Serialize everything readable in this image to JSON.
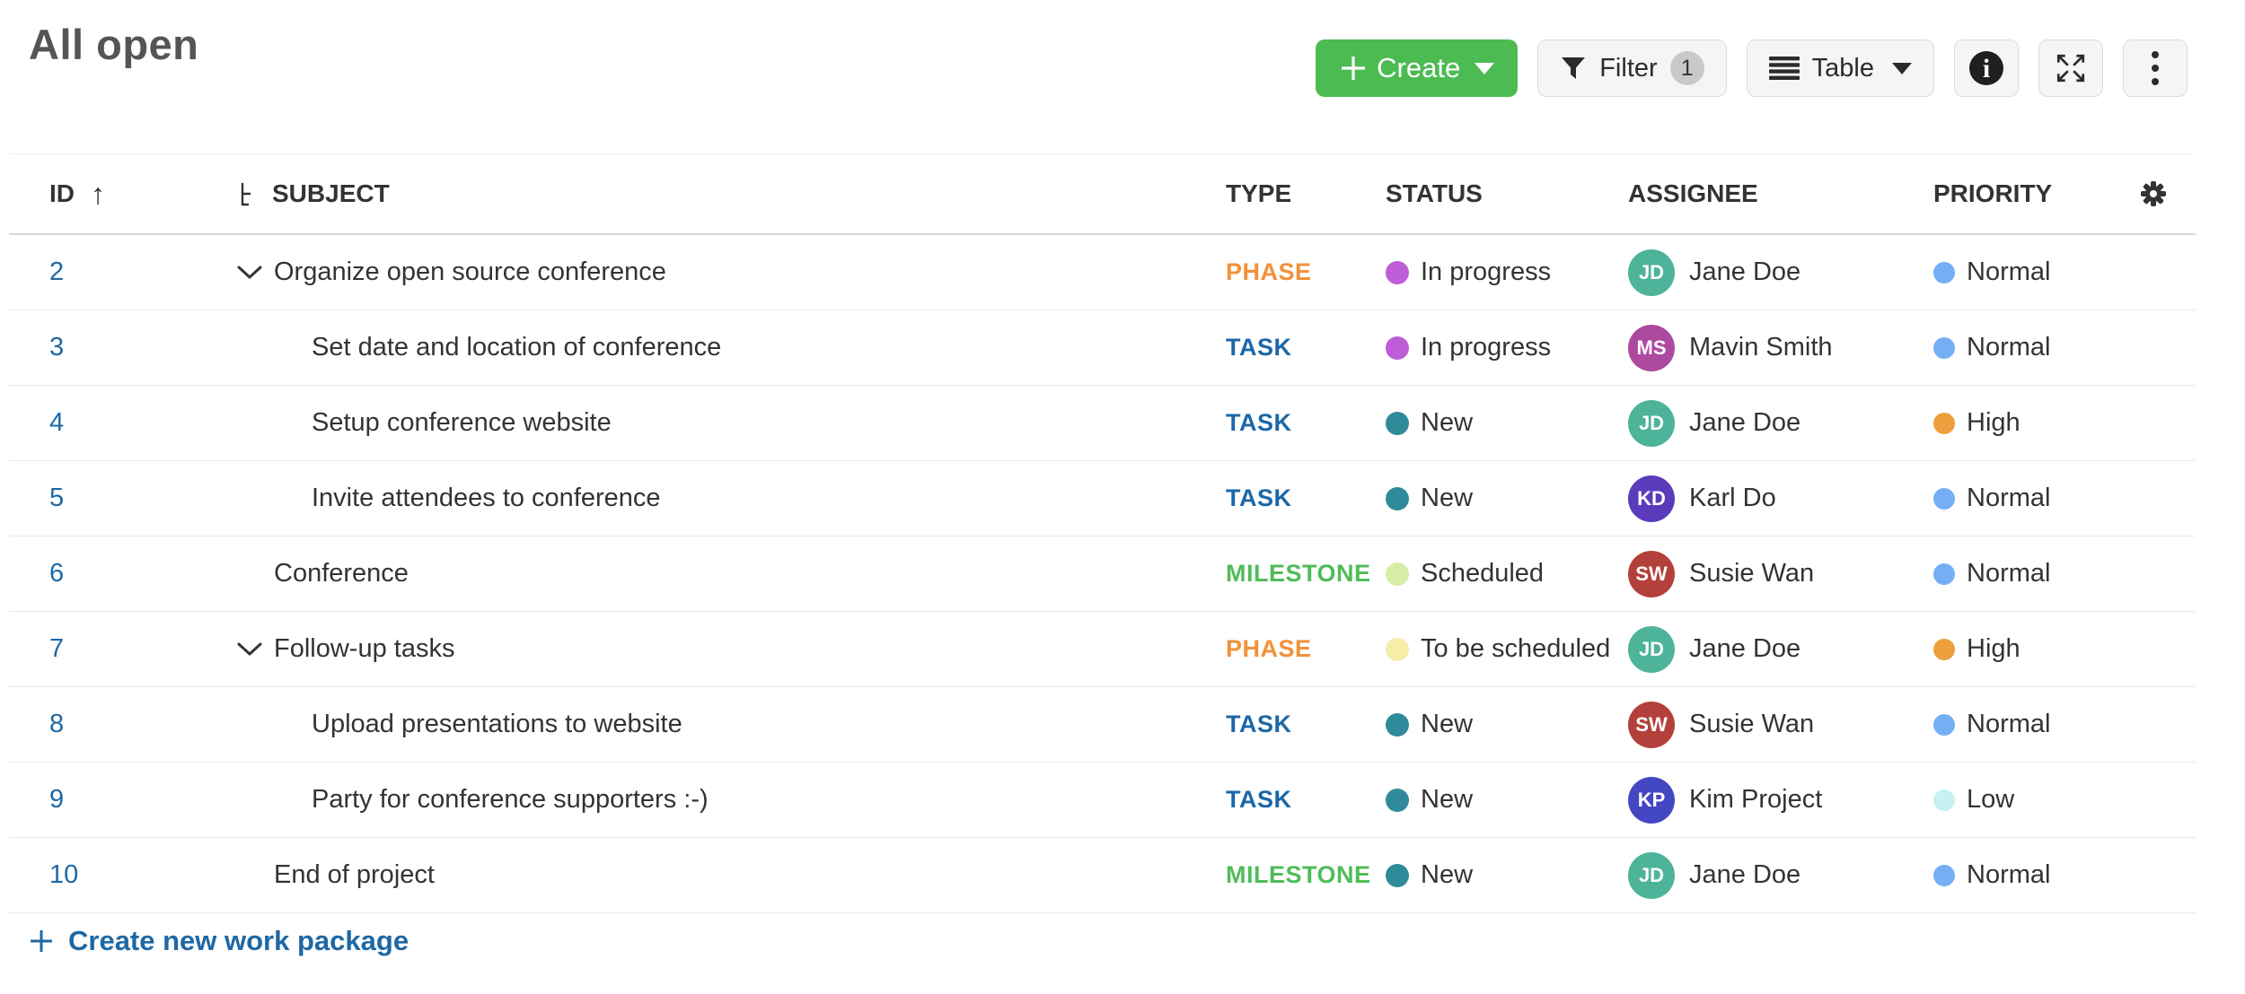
{
  "page": {
    "title": "All open"
  },
  "toolbar": {
    "create": {
      "label": "Create"
    },
    "filter": {
      "label": "Filter",
      "count": "1"
    },
    "view": {
      "label": "Table"
    }
  },
  "columns": {
    "id": "ID",
    "subject": "SUBJECT",
    "type": "TYPE",
    "status": "STATUS",
    "assignee": "ASSIGNEE",
    "priority": "PRIORITY"
  },
  "rows": [
    {
      "id": "2",
      "subject": "Organize open source conference",
      "level": 0,
      "expandable": true,
      "type": "PHASE",
      "status": "In progress",
      "assignee": {
        "initials": "JD",
        "name": "Jane Doe"
      },
      "priority": "Normal"
    },
    {
      "id": "3",
      "subject": "Set date and location of conference",
      "level": 1,
      "expandable": false,
      "type": "TASK",
      "status": "In progress",
      "assignee": {
        "initials": "MS",
        "name": "Mavin Smith"
      },
      "priority": "Normal"
    },
    {
      "id": "4",
      "subject": "Setup conference website",
      "level": 1,
      "expandable": false,
      "type": "TASK",
      "status": "New",
      "assignee": {
        "initials": "JD",
        "name": "Jane Doe"
      },
      "priority": "High"
    },
    {
      "id": "5",
      "subject": "Invite attendees to conference",
      "level": 1,
      "expandable": false,
      "type": "TASK",
      "status": "New",
      "assignee": {
        "initials": "KD",
        "name": "Karl Do"
      },
      "priority": "Normal"
    },
    {
      "id": "6",
      "subject": "Conference",
      "level": 0,
      "expandable": false,
      "type": "MILESTONE",
      "status": "Scheduled",
      "assignee": {
        "initials": "SW",
        "name": "Susie Wan"
      },
      "priority": "Normal"
    },
    {
      "id": "7",
      "subject": "Follow-up tasks",
      "level": 0,
      "expandable": true,
      "type": "PHASE",
      "status": "To be scheduled",
      "assignee": {
        "initials": "JD",
        "name": "Jane Doe"
      },
      "priority": "High"
    },
    {
      "id": "8",
      "subject": "Upload presentations to website",
      "level": 1,
      "expandable": false,
      "type": "TASK",
      "status": "New",
      "assignee": {
        "initials": "SW",
        "name": "Susie Wan"
      },
      "priority": "Normal"
    },
    {
      "id": "9",
      "subject": "Party for conference supporters :-)",
      "level": 1,
      "expandable": false,
      "type": "TASK",
      "status": "New",
      "assignee": {
        "initials": "KP",
        "name": "Kim Project"
      },
      "priority": "Low"
    },
    {
      "id": "10",
      "subject": "End of project",
      "level": 0,
      "expandable": false,
      "type": "MILESTONE",
      "status": "New",
      "assignee": {
        "initials": "JD",
        "name": "Jane Doe"
      },
      "priority": "Normal"
    }
  ],
  "footer": {
    "create_link": "Create new work package"
  },
  "icons": {
    "sort_ascending": "↑"
  },
  "colors": {
    "accent_green": "#4cbb52",
    "link_blue": "#1d68a5",
    "type": {
      "PHASE": "#f29139",
      "TASK": "#1b67a8",
      "MILESTONE": "#50bc59"
    },
    "status": {
      "In progress": "#be5dd8",
      "New": "#2f8b9a",
      "Scheduled": "#d8eda6",
      "To be scheduled": "#f5eda8"
    },
    "priority": {
      "Normal": "#74aff5",
      "High": "#ec9f3c",
      "Low": "#c8f1f1"
    },
    "avatar": {
      "JD": "#4db399",
      "MS": "#ad4aa0",
      "KD": "#5b3bbc",
      "SW": "#b4403b",
      "KP": "#4347c2"
    }
  }
}
